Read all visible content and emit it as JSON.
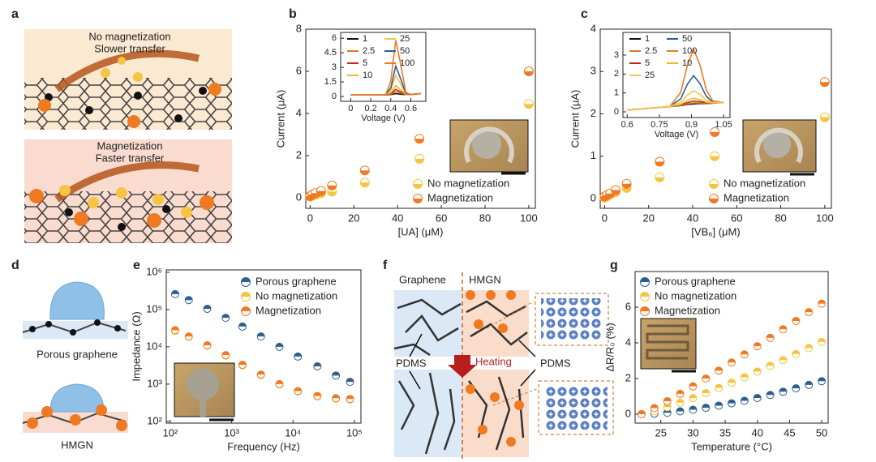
{
  "panel_letters": [
    "a",
    "b",
    "c",
    "d",
    "e",
    "f",
    "g"
  ],
  "illustrations": {
    "a": {
      "top_line1": "No magnetization",
      "top_line2": "Slower transfer",
      "bottom_line1": "Magnetization",
      "bottom_line2": "Faster transfer"
    },
    "d": {
      "top_label": "Porous graphene",
      "bottom_label": "HMGN"
    },
    "f": {
      "left_title": "Graphene",
      "right_title": "HMGN",
      "arrow_label": "Heating",
      "left_callout": "PDMS",
      "right_callout": "PDMS"
    }
  },
  "chart_data": [
    {
      "type": "scatter",
      "xlabel": "[UA] (μM)",
      "ylabel": "Current (μA)",
      "x": [
        0,
        1,
        2.5,
        5,
        10,
        25,
        50,
        100
      ],
      "xlim": [
        -2,
        103
      ],
      "ylim": [
        -0.5,
        8
      ],
      "xticks": [
        0,
        20,
        40,
        60,
        80,
        100
      ],
      "yticks": [
        0,
        2,
        4,
        6,
        8
      ],
      "legend": "lower right",
      "marker_fill": "bottom",
      "series": [
        {
          "name": "No magnetization",
          "color": "#f6c343",
          "values": [
            0.05,
            0.1,
            0.15,
            0.22,
            0.3,
            0.72,
            1.85,
            4.45
          ]
        },
        {
          "name": "Magnetization",
          "color": "#ef7a22",
          "values": [
            0.08,
            0.15,
            0.22,
            0.32,
            0.58,
            1.3,
            2.8,
            6.0
          ]
        }
      ]
    },
    {
      "type": "line",
      "xlabel": "Voltage (V)",
      "x": [
        0,
        0.1,
        0.2,
        0.3,
        0.35,
        0.4,
        0.45,
        0.5,
        0.55,
        0.6,
        0.7
      ],
      "xlim": [
        -0.1,
        0.75
      ],
      "ylim": [
        -0.5,
        6.6
      ],
      "xticks": [
        0,
        0.2,
        0.4,
        0.6
      ],
      "yticks": [
        0,
        1.5,
        3,
        4.5,
        6
      ],
      "legend": "upper left",
      "series": [
        {
          "name": "1",
          "color": "#111111",
          "values": [
            0.15,
            0.15,
            0.15,
            0.15,
            0.15,
            0.19,
            0.29,
            0.23,
            0.19,
            0.2,
            0.3
          ]
        },
        {
          "name": "2.5",
          "color": "#d9782a",
          "values": [
            0.15,
            0.15,
            0.15,
            0.15,
            0.15,
            0.23,
            0.49,
            0.34,
            0.19,
            0.2,
            0.3
          ]
        },
        {
          "name": "5",
          "color": "#c0281c",
          "values": [
            0.15,
            0.15,
            0.15,
            0.15,
            0.15,
            0.29,
            0.73,
            0.47,
            0.2,
            0.2,
            0.3
          ]
        },
        {
          "name": "10",
          "color": "#e8b92f",
          "values": [
            0.15,
            0.15,
            0.15,
            0.15,
            0.16,
            0.39,
            1.11,
            0.68,
            0.22,
            0.2,
            0.3
          ]
        },
        {
          "name": "25",
          "color": "#f3c650",
          "values": [
            0.15,
            0.15,
            0.15,
            0.15,
            0.17,
            0.65,
            2.17,
            1.26,
            0.26,
            0.2,
            0.3
          ]
        },
        {
          "name": "50",
          "color": "#2f5f8f",
          "values": [
            0.15,
            0.15,
            0.15,
            0.15,
            0.17,
            0.89,
            3.13,
            1.79,
            0.3,
            0.2,
            0.3
          ]
        },
        {
          "name": "100",
          "color": "#ef7a26",
          "values": [
            0.15,
            0.15,
            0.15,
            0.15,
            0.2,
            1.57,
            5.81,
            3.28,
            0.42,
            0.2,
            0.3
          ]
        }
      ]
    },
    {
      "type": "scatter",
      "xlabel": "[VB₆] (μM)",
      "ylabel": "Current (μA)",
      "x": [
        0,
        1,
        2.5,
        5,
        10,
        25,
        50,
        100
      ],
      "xlim": [
        -2,
        103
      ],
      "ylim": [
        -0.23,
        4
      ],
      "xticks": [
        0,
        20,
        40,
        60,
        80,
        100
      ],
      "yticks": [
        0,
        1,
        2,
        3,
        4
      ],
      "legend": "lower right",
      "marker_fill": "bottom",
      "series": [
        {
          "name": "No magnetization",
          "color": "#f6c343",
          "values": [
            0.02,
            0.05,
            0.1,
            0.15,
            0.25,
            0.5,
            1.0,
            1.92
          ]
        },
        {
          "name": "Magnetization",
          "color": "#ef7a22",
          "values": [
            0.05,
            0.08,
            0.12,
            0.2,
            0.35,
            0.87,
            1.57,
            2.75
          ]
        }
      ]
    },
    {
      "type": "line",
      "xlabel": "Voltage (V)",
      "x": [
        0.6,
        0.65,
        0.7,
        0.75,
        0.8,
        0.85,
        0.88,
        0.91,
        0.94,
        0.97,
        1.0,
        1.05
      ],
      "xlim": [
        0.58,
        1.08
      ],
      "ylim": [
        -0.3,
        4.2
      ],
      "xticks": [
        0.6,
        0.75,
        0.9,
        1.05
      ],
      "yticks": [
        0,
        1,
        2,
        3
      ],
      "legend": "upper left",
      "series": [
        {
          "name": "1",
          "color": "#111111",
          "values": [
            0.1,
            0.14,
            0.19,
            0.23,
            0.28,
            0.33,
            0.39,
            0.42,
            0.44,
            0.44,
            0.46,
            0.5
          ]
        },
        {
          "name": "50",
          "color": "#2f5f8f",
          "values": [
            0.1,
            0.14,
            0.19,
            0.23,
            0.29,
            0.69,
            1.44,
            1.92,
            1.49,
            0.8,
            0.52,
            0.5
          ]
        },
        {
          "name": "2.5",
          "color": "#d9782a",
          "values": [
            0.1,
            0.14,
            0.19,
            0.23,
            0.28,
            0.34,
            0.42,
            0.47,
            0.47,
            0.45,
            0.46,
            0.5
          ]
        },
        {
          "name": "100",
          "color": "#ef7a26",
          "values": [
            0.1,
            0.14,
            0.19,
            0.23,
            0.3,
            1.03,
            2.42,
            3.32,
            2.47,
            1.14,
            0.58,
            0.5
          ]
        },
        {
          "name": "5",
          "color": "#c0281c",
          "values": [
            0.1,
            0.14,
            0.19,
            0.23,
            0.28,
            0.37,
            0.49,
            0.57,
            0.54,
            0.48,
            0.47,
            0.5
          ]
        },
        {
          "name": "10",
          "color": "#e8b92f",
          "values": [
            0.1,
            0.14,
            0.19,
            0.23,
            0.28,
            0.4,
            0.6,
            0.72,
            0.65,
            0.51,
            0.47,
            0.5
          ]
        },
        {
          "name": "25",
          "color": "#f3c650",
          "values": [
            0.1,
            0.14,
            0.19,
            0.23,
            0.29,
            0.5,
            0.88,
            1.12,
            0.93,
            0.61,
            0.49,
            0.5
          ]
        }
      ]
    },
    {
      "type": "scatter",
      "xlabel": "Frequency (Hz)",
      "ylabel": "Impedance (Ω)",
      "xscale": "log",
      "yscale": "log",
      "x": [
        120,
        200,
        400,
        800,
        1500,
        3000,
        6000,
        12000,
        25000,
        50000,
        85000
      ],
      "xlim": [
        86,
        128000
      ],
      "ylim": [
        90,
        1160000
      ],
      "xticks": [
        {
          "value": 100,
          "label": "10²"
        },
        {
          "value": 1000,
          "label": "10³"
        },
        {
          "value": 10000,
          "label": "10⁴"
        },
        {
          "value": 100000,
          "label": "10⁵"
        }
      ],
      "yticks": [
        {
          "value": 100,
          "label": "10²"
        },
        {
          "value": 1000,
          "label": "10³"
        },
        {
          "value": 10000,
          "label": "10⁴"
        },
        {
          "value": 100000,
          "label": "10⁵"
        },
        {
          "value": 1000000,
          "label": "10⁶"
        }
      ],
      "legend": "upper right",
      "marker_fill": "top",
      "series": [
        {
          "name": "Porous graphene",
          "color": "#2f5f8f",
          "values": [
            260000,
            180000,
            105000,
            60000,
            35000,
            19000,
            10000,
            5500,
            3000,
            1700,
            1150
          ]
        },
        {
          "name": "No magnetization",
          "color": "#f6c343",
          "values": [
            27000,
            18500,
            10700,
            5800,
            3200,
            1750,
            980,
            640,
            470,
            410,
            390
          ]
        },
        {
          "name": "Magnetization",
          "color": "#ef7a22",
          "values": [
            28000,
            19000,
            11000,
            6000,
            3300,
            1800,
            1000,
            650,
            480,
            420,
            400
          ]
        }
      ]
    },
    {
      "type": "scatter",
      "xlabel": "Temperature (°C)",
      "ylabel": "ΔR/R₀ (%)",
      "x": [
        22,
        24,
        26,
        28,
        30,
        32,
        34,
        36,
        38,
        40,
        42,
        44,
        46,
        48,
        50
      ],
      "xlim": [
        21,
        51
      ],
      "ylim": [
        -0.5,
        8
      ],
      "xticks": [
        25,
        30,
        35,
        40,
        45,
        50
      ],
      "yticks": [
        0,
        2,
        4,
        6
      ],
      "legend": "upper left",
      "marker_fill": "top",
      "series": [
        {
          "name": "Porous graphene",
          "color": "#2f5f8f",
          "values": [
            0,
            0.03,
            0.08,
            0.16,
            0.25,
            0.36,
            0.48,
            0.61,
            0.75,
            0.91,
            1.08,
            1.26,
            1.45,
            1.64,
            1.85
          ]
        },
        {
          "name": "No magnetization",
          "color": "#f6c343",
          "values": [
            0,
            0.17,
            0.39,
            0.64,
            0.9,
            1.18,
            1.47,
            1.76,
            2.07,
            2.39,
            2.71,
            3.03,
            3.37,
            3.71,
            4.05
          ]
        },
        {
          "name": "Magnetization",
          "color": "#ef7a22",
          "values": [
            0,
            0.34,
            0.73,
            1.14,
            1.56,
            2.0,
            2.44,
            2.9,
            3.35,
            3.81,
            4.28,
            4.76,
            5.23,
            5.72,
            6.2
          ]
        }
      ]
    }
  ]
}
